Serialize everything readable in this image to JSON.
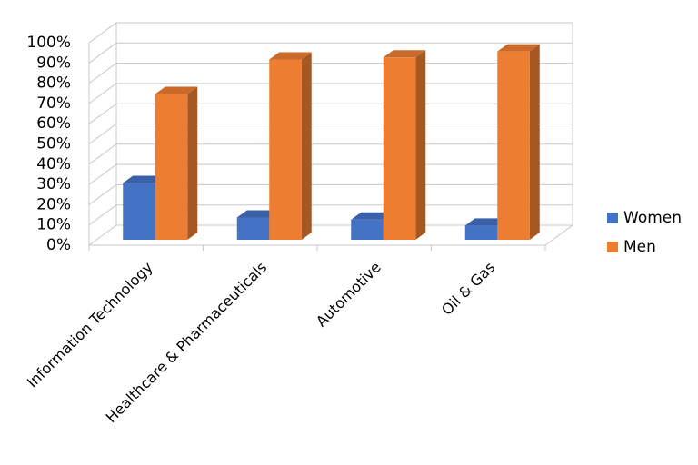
{
  "chart_data": {
    "type": "bar3d",
    "categories": [
      "Information Technology",
      "Healthcare & Pharmaceuticals",
      "Automotive",
      "Oil & Gas"
    ],
    "series": [
      {
        "name": "Women",
        "color": "#4472c4",
        "values": [
          28,
          11,
          10,
          7
        ]
      },
      {
        "name": "Men",
        "color": "#ed7d31",
        "values": [
          72,
          89,
          90,
          93
        ]
      }
    ],
    "ylim": [
      0,
      100
    ],
    "yticks": [
      {
        "value": 0,
        "label": "0%"
      },
      {
        "value": 10,
        "label": "10%"
      },
      {
        "value": 20,
        "label": "20%"
      },
      {
        "value": 30,
        "label": "30%"
      },
      {
        "value": 40,
        "label": "40%"
      },
      {
        "value": 50,
        "label": "50%"
      },
      {
        "value": 60,
        "label": "60%"
      },
      {
        "value": 70,
        "label": "70%"
      },
      {
        "value": 80,
        "label": "80%"
      },
      {
        "value": 90,
        "label": "90%"
      },
      {
        "value": 100,
        "label": "100%"
      }
    ],
    "grid": true,
    "legend": "right"
  }
}
